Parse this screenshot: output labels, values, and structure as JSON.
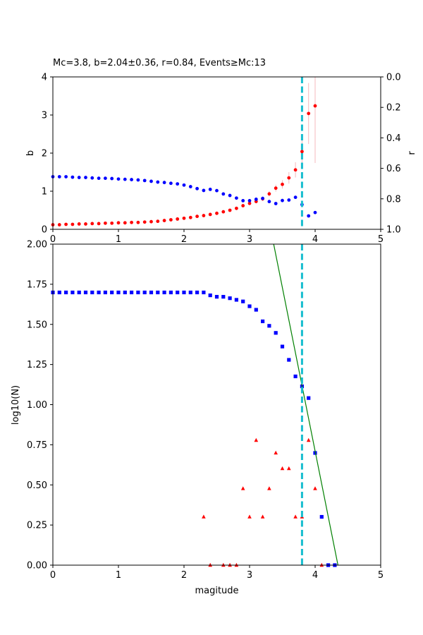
{
  "chart_data": [
    {
      "type": "scatter",
      "title": "Mc=3.8, b=2.04±0.36, r=0.84, Events≥Mc:13",
      "xlabel": "",
      "ylabel": "b",
      "y2label": "r",
      "xlim": [
        0,
        5
      ],
      "ylim": [
        0,
        4
      ],
      "y2lim": [
        1.0,
        0.0
      ],
      "y2_inverted": true,
      "xticks": [
        "0",
        "1",
        "2",
        "3",
        "4",
        "5"
      ],
      "yticks": [
        "0",
        "1",
        "2",
        "3",
        "4"
      ],
      "y2ticks": [
        "0.0",
        "0.2",
        "0.4",
        "0.6",
        "0.8",
        "1.0"
      ],
      "grid": false,
      "mc_line": {
        "x": 3.8,
        "color": "#17becf",
        "style": "dashed"
      },
      "series": [
        {
          "color": "#ff0000",
          "axis": "left",
          "x": [
            0.0,
            0.1,
            0.2,
            0.3,
            0.4,
            0.5,
            0.6,
            0.7,
            0.8,
            0.9,
            1.0,
            1.1,
            1.2,
            1.3,
            1.4,
            1.5,
            1.6,
            1.7,
            1.8,
            1.9,
            2.0,
            2.1,
            2.2,
            2.3,
            2.4,
            2.5,
            2.6,
            2.7,
            2.8,
            2.9,
            3.0,
            3.1,
            3.2,
            3.3,
            3.4,
            3.5,
            3.6,
            3.7,
            3.8,
            3.9,
            4.0
          ],
          "y": [
            0.12,
            0.12,
            0.13,
            0.13,
            0.14,
            0.14,
            0.15,
            0.15,
            0.16,
            0.16,
            0.17,
            0.17,
            0.18,
            0.18,
            0.19,
            0.2,
            0.21,
            0.23,
            0.25,
            0.27,
            0.29,
            0.31,
            0.34,
            0.36,
            0.39,
            0.42,
            0.46,
            0.5,
            0.55,
            0.62,
            0.68,
            0.73,
            0.8,
            0.93,
            1.08,
            1.18,
            1.35,
            1.56,
            2.04,
            3.04,
            3.24
          ],
          "err": [
            0.01,
            0.01,
            0.01,
            0.01,
            0.01,
            0.01,
            0.01,
            0.01,
            0.01,
            0.01,
            0.01,
            0.01,
            0.01,
            0.01,
            0.01,
            0.01,
            0.01,
            0.01,
            0.01,
            0.01,
            0.01,
            0.01,
            0.01,
            0.02,
            0.02,
            0.02,
            0.02,
            0.02,
            0.03,
            0.03,
            0.04,
            0.05,
            0.06,
            0.07,
            0.09,
            0.11,
            0.15,
            0.2,
            0.36,
            0.8,
            1.5
          ]
        },
        {
          "color": "#0000ff",
          "axis": "right",
          "x": [
            0.0,
            0.1,
            0.2,
            0.3,
            0.4,
            0.5,
            0.6,
            0.7,
            0.8,
            0.9,
            1.0,
            1.1,
            1.2,
            1.3,
            1.4,
            1.5,
            1.6,
            1.7,
            1.8,
            1.9,
            2.0,
            2.1,
            2.2,
            2.3,
            2.4,
            2.5,
            2.6,
            2.7,
            2.8,
            2.9,
            3.0,
            3.1,
            3.2,
            3.3,
            3.4,
            3.5,
            3.6,
            3.7,
            3.8,
            3.9,
            4.0
          ],
          "y": [
            0.655,
            0.655,
            0.655,
            0.658,
            0.66,
            0.66,
            0.663,
            0.665,
            0.665,
            0.667,
            0.67,
            0.672,
            0.674,
            0.676,
            0.68,
            0.685,
            0.69,
            0.693,
            0.698,
            0.702,
            0.71,
            0.72,
            0.733,
            0.745,
            0.738,
            0.746,
            0.768,
            0.778,
            0.795,
            0.812,
            0.812,
            0.803,
            0.797,
            0.818,
            0.831,
            0.811,
            0.808,
            0.79,
            0.838,
            0.912,
            0.89
          ]
        }
      ]
    },
    {
      "type": "scatter",
      "title": "",
      "xlabel": "magitude",
      "ylabel": "log10(N)",
      "xlim": [
        0,
        5
      ],
      "ylim": [
        0,
        2.0
      ],
      "xticks": [
        "0",
        "1",
        "2",
        "3",
        "4",
        "5"
      ],
      "yticks": [
        "0.00",
        "0.25",
        "0.50",
        "0.75",
        "1.00",
        "1.25",
        "1.50",
        "1.75",
        "2.00"
      ],
      "grid": false,
      "mc_line": {
        "x": 3.8,
        "color": "#17becf",
        "style": "dashed"
      },
      "fit_line": {
        "color": "#008000",
        "a": 8.87,
        "b": 2.04
      },
      "series": [
        {
          "marker": "square",
          "color": "#0000ff",
          "x": [
            0.0,
            0.1,
            0.2,
            0.3,
            0.4,
            0.5,
            0.6,
            0.7,
            0.8,
            0.9,
            1.0,
            1.1,
            1.2,
            1.3,
            1.4,
            1.5,
            1.6,
            1.7,
            1.8,
            1.9,
            2.0,
            2.1,
            2.2,
            2.3,
            2.4,
            2.5,
            2.6,
            2.7,
            2.8,
            2.9,
            3.0,
            3.1,
            3.2,
            3.3,
            3.4,
            3.5,
            3.6,
            3.7,
            3.8,
            3.9,
            4.0,
            4.1,
            4.2,
            4.3
          ],
          "y": [
            1.699,
            1.699,
            1.699,
            1.699,
            1.699,
            1.699,
            1.699,
            1.699,
            1.699,
            1.699,
            1.699,
            1.699,
            1.699,
            1.699,
            1.699,
            1.699,
            1.699,
            1.699,
            1.699,
            1.699,
            1.699,
            1.699,
            1.699,
            1.699,
            1.681,
            1.672,
            1.672,
            1.663,
            1.653,
            1.643,
            1.613,
            1.591,
            1.519,
            1.491,
            1.447,
            1.362,
            1.279,
            1.176,
            1.114,
            1.041,
            0.699,
            0.301,
            0.0,
            0.0
          ]
        },
        {
          "marker": "triangle",
          "color": "#ff0000",
          "x": [
            2.3,
            2.4,
            2.6,
            2.7,
            2.8,
            2.9,
            3.0,
            3.1,
            3.2,
            3.3,
            3.4,
            3.5,
            3.6,
            3.7,
            3.8,
            3.9,
            4.0,
            4.1
          ],
          "y": [
            0.301,
            0.0,
            0.0,
            0.0,
            0.0,
            0.477,
            0.301,
            0.778,
            0.301,
            0.477,
            0.699,
            0.602,
            0.602,
            0.301,
            0.301,
            0.778,
            0.477,
            0.0
          ]
        }
      ]
    }
  ]
}
